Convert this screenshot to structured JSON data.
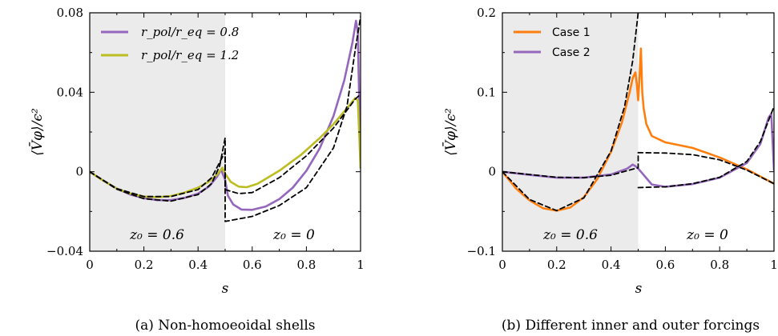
{
  "chart_data": [
    {
      "type": "line",
      "xlabel": "s",
      "ylabel": "⟨V̄φ⟩/ϵ²",
      "xlim": [
        0,
        1
      ],
      "ylim": [
        -0.04,
        0.08
      ],
      "xticks": [
        0,
        0.2,
        0.4,
        0.6,
        0.8,
        1
      ],
      "xtick_labels": [
        "0",
        "0.2",
        "0.4",
        "0.6",
        "0.8",
        "1"
      ],
      "yticks": [
        -0.04,
        0,
        0.04,
        0.08
      ],
      "ytick_labels": [
        "−0.04",
        "0",
        "0.04",
        "0.08"
      ],
      "shaded_region": {
        "xmin": 0,
        "xmax": 0.5
      },
      "region_labels": [
        "z₀ = 0.6",
        "z₀ = 0"
      ],
      "legend_position": "top-left",
      "grid": false,
      "caption": "(a) Non-homoeoidal shells",
      "series": [
        {
          "name": "r_pol/r_eq = 0.8",
          "color": "#9467bd",
          "style": "solid",
          "points": [
            [
              0,
              0
            ],
            [
              0.05,
              -0.0045
            ],
            [
              0.1,
              -0.0085
            ],
            [
              0.15,
              -0.0115
            ],
            [
              0.2,
              -0.0133
            ],
            [
              0.25,
              -0.0143
            ],
            [
              0.3,
              -0.0143
            ],
            [
              0.35,
              -0.0132
            ],
            [
              0.4,
              -0.011
            ],
            [
              0.44,
              -0.0075
            ],
            [
              0.47,
              -0.0025
            ],
            [
              0.485,
              0.001
            ],
            [
              0.5,
              -0.004
            ],
            [
              0.51,
              -0.012
            ],
            [
              0.53,
              -0.0165
            ],
            [
              0.56,
              -0.019
            ],
            [
              0.6,
              -0.0192
            ],
            [
              0.65,
              -0.0175
            ],
            [
              0.7,
              -0.0138
            ],
            [
              0.75,
              -0.008
            ],
            [
              0.8,
              0.0005
            ],
            [
              0.85,
              0.012
            ],
            [
              0.9,
              0.028
            ],
            [
              0.94,
              0.046
            ],
            [
              0.97,
              0.065
            ],
            [
              0.983,
              0.076
            ],
            [
              0.99,
              0.07
            ],
            [
              1,
              0.002
            ]
          ]
        },
        {
          "name": "r_pol/r_eq = 1.2",
          "color": "#bcbd22",
          "style": "solid",
          "points": [
            [
              0,
              0
            ],
            [
              0.05,
              -0.0045
            ],
            [
              0.1,
              -0.0085
            ],
            [
              0.15,
              -0.011
            ],
            [
              0.2,
              -0.0125
            ],
            [
              0.25,
              -0.0128
            ],
            [
              0.3,
              -0.0122
            ],
            [
              0.35,
              -0.0105
            ],
            [
              0.4,
              -0.008
            ],
            [
              0.44,
              -0.005
            ],
            [
              0.47,
              -0.0015
            ],
            [
              0.49,
              0.002
            ],
            [
              0.5,
              -0.001
            ],
            [
              0.52,
              -0.005
            ],
            [
              0.55,
              -0.0075
            ],
            [
              0.58,
              -0.0078
            ],
            [
              0.62,
              -0.006
            ],
            [
              0.7,
              0.0005
            ],
            [
              0.78,
              0.0085
            ],
            [
              0.85,
              0.017
            ],
            [
              0.9,
              0.024
            ],
            [
              0.95,
              0.032
            ],
            [
              0.98,
              0.037
            ],
            [
              0.99,
              0.036
            ],
            [
              1,
              0.002
            ]
          ]
        },
        {
          "name": "",
          "color": "#000000",
          "style": "dashed",
          "points": [
            [
              0,
              0
            ],
            [
              0.1,
              -0.0088
            ],
            [
              0.2,
              -0.0136
            ],
            [
              0.3,
              -0.0148
            ],
            [
              0.4,
              -0.0115
            ],
            [
              0.45,
              -0.006
            ],
            [
              0.48,
              0.003
            ],
            [
              0.5,
              0.017
            ],
            [
              0.5,
              -0.025
            ],
            [
              0.6,
              -0.0225
            ],
            [
              0.7,
              -0.017
            ],
            [
              0.8,
              -0.008
            ],
            [
              0.9,
              0.012
            ],
            [
              0.95,
              0.033
            ],
            [
              0.98,
              0.061
            ],
            [
              1,
              0.078
            ]
          ]
        },
        {
          "name": "",
          "color": "#000000",
          "style": "dashed",
          "points": [
            [
              0,
              0
            ],
            [
              0.1,
              -0.0085
            ],
            [
              0.2,
              -0.0125
            ],
            [
              0.3,
              -0.0125
            ],
            [
              0.4,
              -0.009
            ],
            [
              0.45,
              -0.003
            ],
            [
              0.5,
              0.01
            ],
            [
              0.5,
              -0.009
            ],
            [
              0.55,
              -0.011
            ],
            [
              0.6,
              -0.0105
            ],
            [
              0.7,
              -0.003
            ],
            [
              0.8,
              0.008
            ],
            [
              0.9,
              0.022
            ],
            [
              0.95,
              0.031
            ],
            [
              0.98,
              0.0365
            ],
            [
              1,
              0.039
            ]
          ]
        }
      ]
    },
    {
      "type": "line",
      "xlabel": "s",
      "ylabel": "⟨V̄φ⟩/ϵ²",
      "xlim": [
        0,
        1
      ],
      "ylim": [
        -0.1,
        0.2
      ],
      "xticks": [
        0,
        0.2,
        0.4,
        0.6,
        0.8,
        1
      ],
      "xtick_labels": [
        "0",
        "0.2",
        "0.4",
        "0.6",
        "0.8",
        "1"
      ],
      "yticks": [
        -0.1,
        0,
        0.1,
        0.2
      ],
      "ytick_labels": [
        "−0.1",
        "0",
        "0.1",
        "0.2"
      ],
      "shaded_region": {
        "xmin": 0,
        "xmax": 0.5
      },
      "region_labels": [
        "z₀ = 0.6",
        "z₀ = 0"
      ],
      "legend_position": "top-left",
      "grid": false,
      "caption": "(b) Different inner and outer forcings",
      "series": [
        {
          "name": "Case 1",
          "color": "#ff7f0e",
          "style": "solid",
          "points": [
            [
              0,
              0
            ],
            [
              0.05,
              -0.021
            ],
            [
              0.1,
              -0.036
            ],
            [
              0.15,
              -0.046
            ],
            [
              0.2,
              -0.049
            ],
            [
              0.25,
              -0.045
            ],
            [
              0.3,
              -0.032
            ],
            [
              0.35,
              -0.009
            ],
            [
              0.4,
              0.025
            ],
            [
              0.44,
              0.062
            ],
            [
              0.47,
              0.102
            ],
            [
              0.48,
              0.118
            ],
            [
              0.49,
              0.125
            ],
            [
              0.495,
              0.11
            ],
            [
              0.5,
              0.09
            ],
            [
              0.505,
              0.12
            ],
            [
              0.51,
              0.155
            ],
            [
              0.515,
              0.1
            ],
            [
              0.52,
              0.08
            ],
            [
              0.53,
              0.06
            ],
            [
              0.55,
              0.045
            ],
            [
              0.6,
              0.037
            ],
            [
              0.7,
              0.03
            ],
            [
              0.8,
              0.018
            ],
            [
              0.9,
              0.003
            ],
            [
              0.95,
              -0.006
            ],
            [
              1,
              -0.015
            ]
          ]
        },
        {
          "name": "Case 2",
          "color": "#9467bd",
          "style": "solid",
          "points": [
            [
              0,
              0
            ],
            [
              0.1,
              -0.004
            ],
            [
              0.2,
              -0.0075
            ],
            [
              0.3,
              -0.0075
            ],
            [
              0.4,
              -0.0035
            ],
            [
              0.46,
              0.004
            ],
            [
              0.48,
              0.009
            ],
            [
              0.49,
              0.007
            ],
            [
              0.5,
              0.004
            ],
            [
              0.52,
              -0.004
            ],
            [
              0.55,
              -0.016
            ],
            [
              0.6,
              -0.019
            ],
            [
              0.7,
              -0.0155
            ],
            [
              0.8,
              -0.0075
            ],
            [
              0.9,
              0.011
            ],
            [
              0.95,
              0.035
            ],
            [
              0.98,
              0.068
            ],
            [
              0.99,
              0.073
            ],
            [
              1,
              0.002
            ]
          ]
        },
        {
          "name": "",
          "color": "#000000",
          "style": "dashed",
          "points": [
            [
              0,
              0
            ],
            [
              0.1,
              -0.035
            ],
            [
              0.2,
              -0.049
            ],
            [
              0.3,
              -0.033
            ],
            [
              0.4,
              0.026
            ],
            [
              0.45,
              0.082
            ],
            [
              0.48,
              0.14
            ],
            [
              0.5,
              0.2
            ]
          ]
        },
        {
          "name": "",
          "color": "#000000",
          "style": "dashed",
          "points": [
            [
              0.5,
              -0.02
            ],
            [
              0.6,
              -0.019
            ],
            [
              0.7,
              -0.015
            ],
            [
              0.8,
              -0.007
            ],
            [
              0.9,
              0.013
            ],
            [
              0.95,
              0.038
            ],
            [
              1,
              0.082
            ]
          ]
        },
        {
          "name": "",
          "color": "#000000",
          "style": "dashed",
          "points": [
            [
              0,
              0
            ],
            [
              0.1,
              -0.0035
            ],
            [
              0.2,
              -0.007
            ],
            [
              0.3,
              -0.0075
            ],
            [
              0.4,
              -0.0045
            ],
            [
              0.45,
              0.0005
            ],
            [
              0.5,
              0.005
            ],
            [
              0.5,
              0.024
            ],
            [
              0.6,
              0.0235
            ],
            [
              0.7,
              0.0215
            ],
            [
              0.8,
              0.015
            ],
            [
              0.9,
              0.002
            ],
            [
              1,
              -0.015
            ]
          ]
        }
      ]
    }
  ]
}
